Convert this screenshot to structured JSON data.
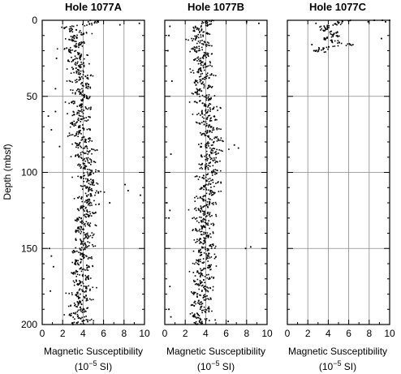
{
  "chart_data": {
    "type": "scatter",
    "ylabel": "Depth (mbsf)",
    "ylim": [
      0,
      200
    ],
    "y_inverted": true,
    "y_ticks": [
      0,
      50,
      100,
      150,
      200
    ],
    "xlim": [
      0,
      10
    ],
    "x_ticks": [
      0,
      2,
      4,
      6,
      8,
      10
    ],
    "xlabel_line1": "Magnetic Susceptibility",
    "xlabel_line2_prefix": "(10",
    "xlabel_line2_exp": "−5",
    "xlabel_line2_suffix": " SI)",
    "grid_x": [
      2,
      4,
      6,
      8
    ],
    "grid_y": [
      50,
      100,
      150
    ],
    "point_color": "#000000",
    "panels": [
      {
        "title": "Hole 1077A",
        "depth_range": [
          0,
          200
        ],
        "profile": [
          [
            0,
            5.0
          ],
          [
            5,
            3.0
          ],
          [
            10,
            3.4
          ],
          [
            15,
            3.3
          ],
          [
            20,
            3.1
          ],
          [
            25,
            3.6
          ],
          [
            30,
            3.4
          ],
          [
            35,
            3.8
          ],
          [
            40,
            3.7
          ],
          [
            45,
            3.9
          ],
          [
            50,
            3.8
          ],
          [
            55,
            3.7
          ],
          [
            60,
            3.9
          ],
          [
            65,
            3.5
          ],
          [
            70,
            3.6
          ],
          [
            75,
            3.8
          ],
          [
            80,
            3.9
          ],
          [
            85,
            4.1
          ],
          [
            90,
            4.2
          ],
          [
            95,
            4.3
          ],
          [
            100,
            4.5
          ],
          [
            105,
            4.4
          ],
          [
            110,
            4.8
          ],
          [
            115,
            4.6
          ],
          [
            120,
            4.3
          ],
          [
            125,
            4.4
          ],
          [
            130,
            4.1
          ],
          [
            135,
            3.9
          ],
          [
            140,
            4.0
          ],
          [
            145,
            4.1
          ],
          [
            150,
            3.8
          ],
          [
            155,
            3.7
          ],
          [
            160,
            3.9
          ],
          [
            165,
            3.8
          ],
          [
            170,
            3.9
          ],
          [
            175,
            4.0
          ],
          [
            180,
            3.7
          ],
          [
            185,
            3.8
          ],
          [
            190,
            3.6
          ],
          [
            195,
            3.7
          ],
          [
            200,
            3.6
          ]
        ],
        "scatter_sd": 0.75,
        "samples_per_meter": 5,
        "outliers": [
          [
            2,
            9.5
          ],
          [
            3,
            7.6
          ],
          [
            25,
            1.4
          ],
          [
            45,
            1.3
          ],
          [
            60,
            1.3
          ],
          [
            63,
            0.6
          ],
          [
            72,
            0.9
          ],
          [
            83,
            1.7
          ],
          [
            108,
            8.1
          ],
          [
            112,
            8.4
          ],
          [
            115,
            9.6
          ],
          [
            120,
            6.6
          ],
          [
            150,
            0.7
          ],
          [
            155,
            0.9
          ],
          [
            162,
            1.1
          ],
          [
            178,
            0.8
          ]
        ]
      },
      {
        "title": "Hole 1077B",
        "depth_range": [
          0,
          200
        ],
        "profile": [
          [
            0,
            4.0
          ],
          [
            5,
            3.6
          ],
          [
            10,
            3.5
          ],
          [
            15,
            3.4
          ],
          [
            20,
            3.5
          ],
          [
            25,
            3.7
          ],
          [
            30,
            3.6
          ],
          [
            35,
            3.8
          ],
          [
            40,
            3.7
          ],
          [
            45,
            3.6
          ],
          [
            50,
            3.8
          ],
          [
            55,
            4.0
          ],
          [
            60,
            4.2
          ],
          [
            65,
            4.1
          ],
          [
            70,
            4.3
          ],
          [
            75,
            4.4
          ],
          [
            80,
            4.6
          ],
          [
            85,
            4.7
          ],
          [
            90,
            4.6
          ],
          [
            95,
            4.3
          ],
          [
            100,
            4.4
          ],
          [
            105,
            4.2
          ],
          [
            110,
            4.3
          ],
          [
            115,
            4.0
          ],
          [
            120,
            3.9
          ],
          [
            125,
            3.8
          ],
          [
            130,
            3.9
          ],
          [
            135,
            3.7
          ],
          [
            140,
            3.8
          ],
          [
            145,
            4.0
          ],
          [
            150,
            4.1
          ],
          [
            155,
            3.9
          ],
          [
            160,
            3.8
          ],
          [
            165,
            3.7
          ],
          [
            170,
            3.8
          ],
          [
            175,
            3.6
          ],
          [
            180,
            3.7
          ],
          [
            185,
            3.5
          ],
          [
            190,
            3.6
          ],
          [
            195,
            3.4
          ],
          [
            200,
            3.5
          ]
        ],
        "scatter_sd": 0.8,
        "samples_per_meter": 5,
        "outliers": [
          [
            1,
            8.0
          ],
          [
            2,
            9.2
          ],
          [
            4,
            0.5
          ],
          [
            10,
            0.4
          ],
          [
            20,
            0.3
          ],
          [
            40,
            0.7
          ],
          [
            82,
            6.8
          ],
          [
            84,
            7.2
          ],
          [
            88,
            0.6
          ],
          [
            120,
            0.2
          ],
          [
            125,
            0.5
          ],
          [
            130,
            0.4
          ],
          [
            149,
            8.4
          ],
          [
            150,
            7.9
          ],
          [
            175,
            0.5
          ],
          [
            190,
            0.4
          ],
          [
            195,
            0.6
          ],
          [
            198,
            6.2
          ]
        ]
      },
      {
        "title": "Hole 1077C",
        "depth_range": [
          0,
          21
        ],
        "profile": [
          [
            0,
            6.0
          ],
          [
            2,
            4.2
          ],
          [
            4,
            4.3
          ],
          [
            6,
            4.0
          ],
          [
            8,
            3.9
          ],
          [
            10,
            4.4
          ],
          [
            12,
            4.5
          ],
          [
            14,
            4.3
          ],
          [
            16,
            5.5
          ],
          [
            18,
            4.0
          ],
          [
            20,
            3.7
          ],
          [
            21,
            3.6
          ]
        ],
        "scatter_sd": 0.55,
        "samples_per_meter": 5,
        "outliers": [
          [
            0,
            8.5
          ],
          [
            0,
            9.3
          ],
          [
            1,
            9.6
          ],
          [
            1,
            7.9
          ],
          [
            0,
            10.0
          ],
          [
            2,
            2.8
          ],
          [
            12,
            9.2
          ],
          [
            16,
            2.4
          ],
          [
            20,
            2.6
          ]
        ]
      }
    ]
  }
}
